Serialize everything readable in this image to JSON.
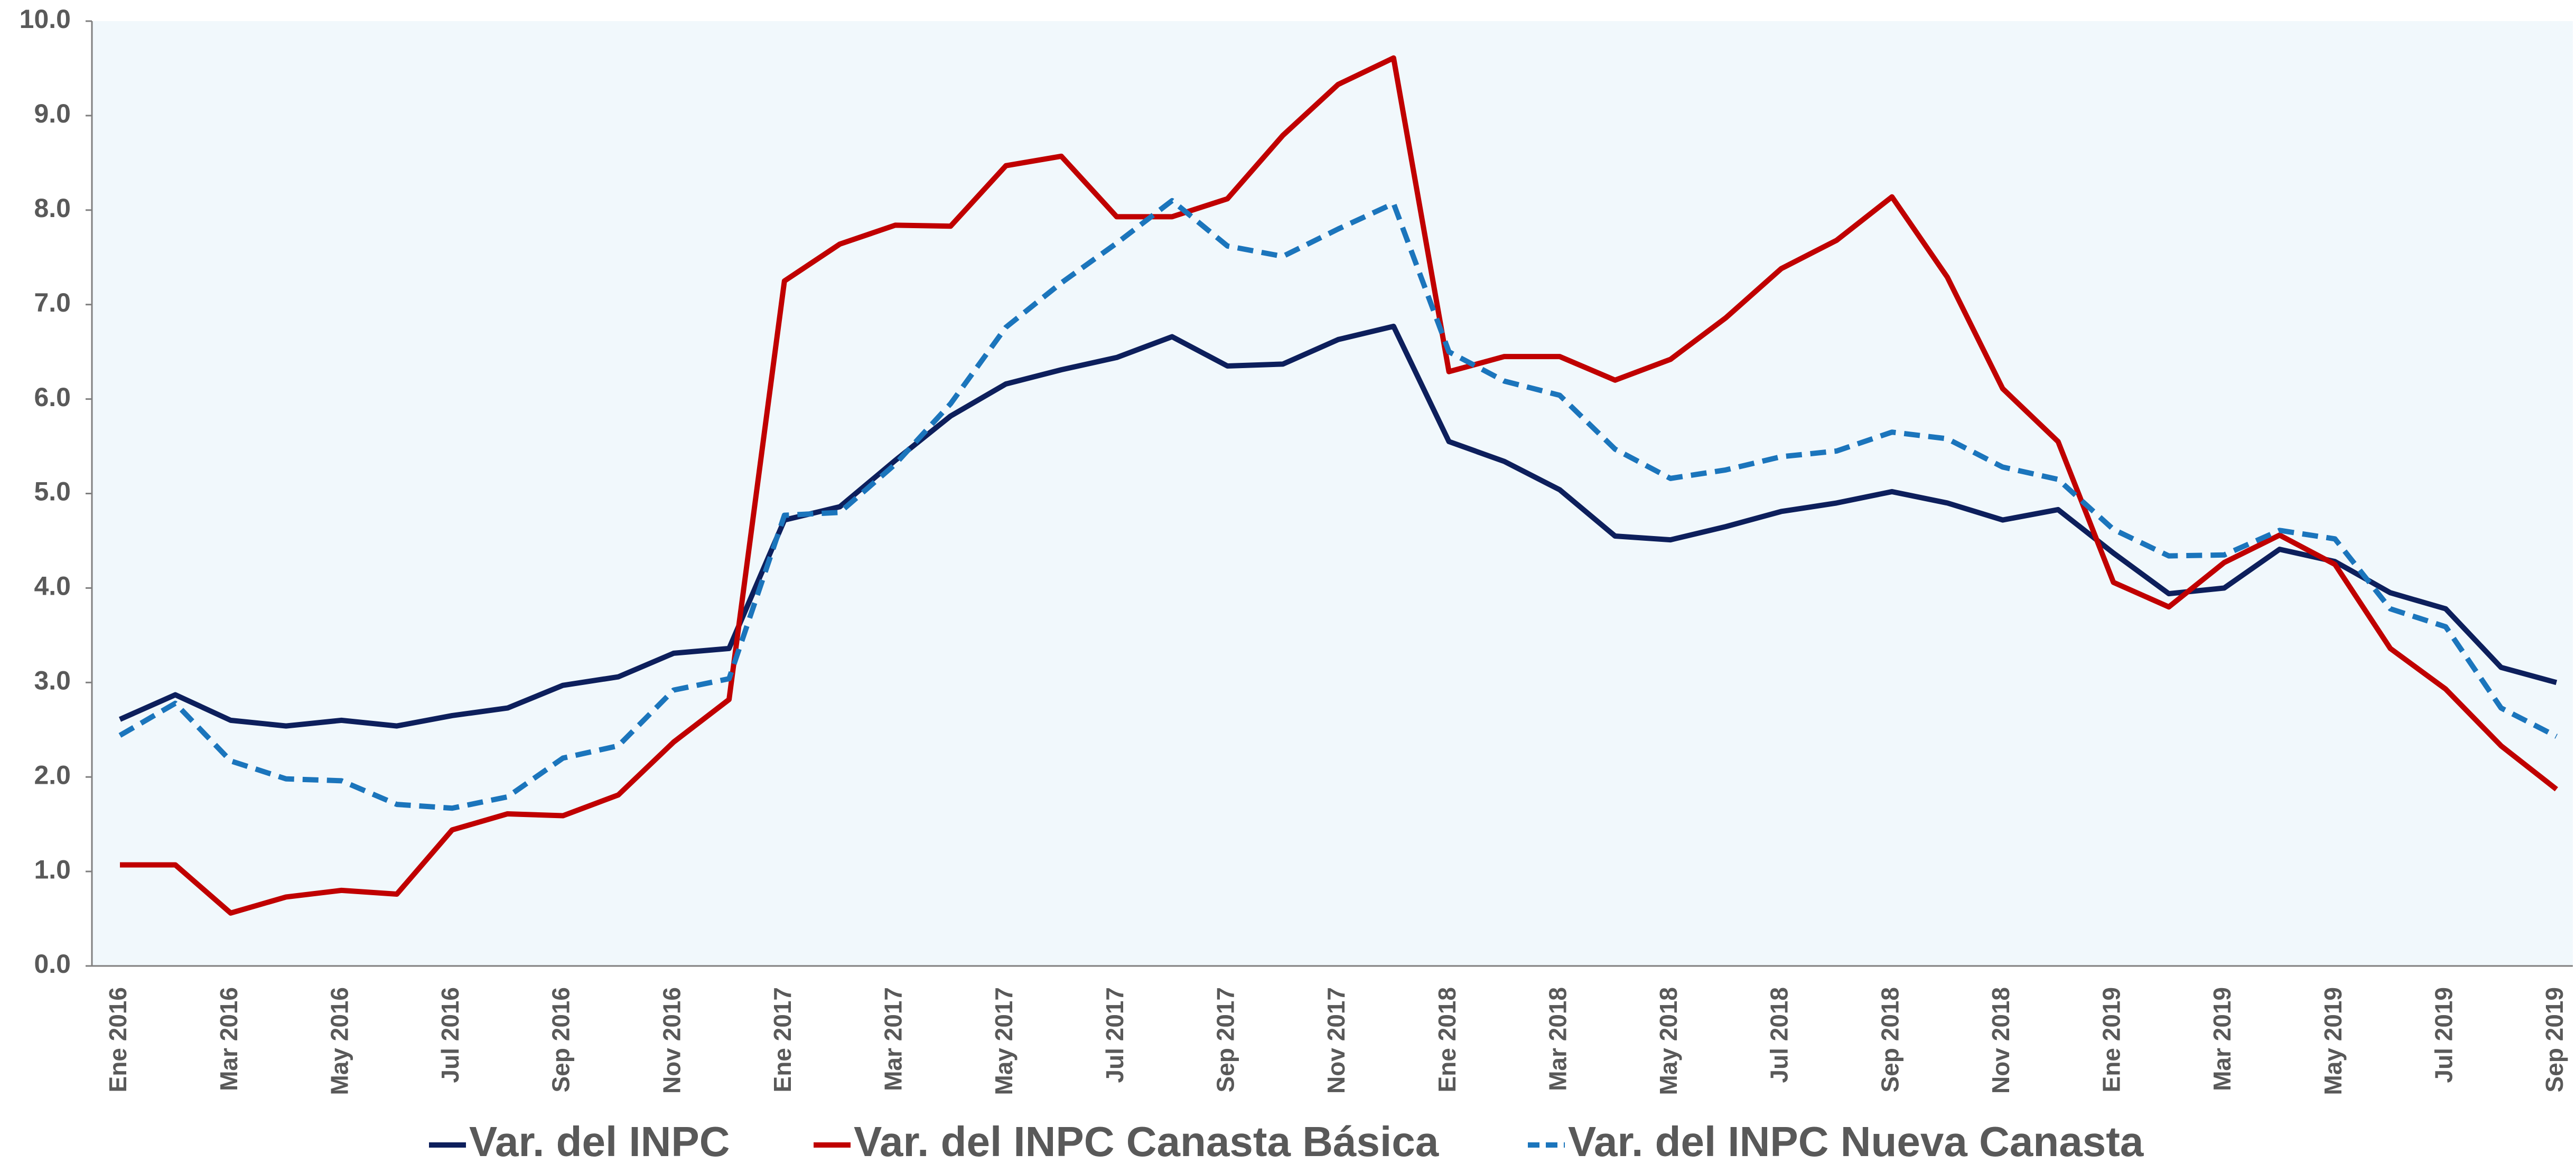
{
  "chart_data": {
    "type": "line",
    "categories": [
      "Ene 2016",
      null,
      "Mar 2016",
      null,
      "May 2016",
      null,
      "Jul 2016",
      null,
      "Sep 2016",
      null,
      "Nov 2016",
      null,
      "Ene 2017",
      null,
      "Mar 2017",
      null,
      "May 2017",
      null,
      "Jul 2017",
      null,
      "Sep 2017",
      null,
      "Nov 2017",
      null,
      "Ene 2018",
      null,
      "Mar 2018",
      null,
      "May 2018",
      null,
      "Jul 2018",
      null,
      "Sep 2018",
      null,
      "Nov 2018",
      null,
      "Ene 2019",
      null,
      "Mar 2019",
      null,
      "May 2019",
      null,
      "Jul 2019",
      null,
      "Sep 2019"
    ],
    "series": [
      {
        "name": "Var. del INPC",
        "color": "#0d1f5c",
        "dash": false,
        "values": [
          2.61,
          2.87,
          2.6,
          2.54,
          2.6,
          2.54,
          2.65,
          2.73,
          2.97,
          3.06,
          3.31,
          3.36,
          4.72,
          4.86,
          5.35,
          5.82,
          6.16,
          6.31,
          6.44,
          6.66,
          6.35,
          6.37,
          6.63,
          6.77,
          5.55,
          5.34,
          5.04,
          4.55,
          4.51,
          4.65,
          4.81,
          4.9,
          5.02,
          4.9,
          4.72,
          4.83,
          4.37,
          3.94,
          4.0,
          4.41,
          4.28,
          3.95,
          3.78,
          3.16,
          3.0
        ]
      },
      {
        "name": "Var. del INPC Canasta Básica",
        "color": "#c00000",
        "dash": false,
        "values": [
          1.07,
          1.07,
          0.56,
          0.73,
          0.8,
          0.76,
          1.44,
          1.61,
          1.59,
          1.81,
          2.37,
          2.82,
          7.25,
          7.64,
          7.84,
          7.83,
          8.47,
          8.57,
          7.93,
          7.93,
          8.12,
          8.79,
          9.33,
          9.61,
          6.29,
          6.45,
          6.45,
          6.2,
          6.42,
          6.86,
          7.38,
          7.68,
          8.14,
          7.29,
          6.11,
          5.55,
          4.06,
          3.8,
          4.27,
          4.56,
          4.25,
          3.36,
          2.93,
          2.33,
          1.87
        ]
      },
      {
        "name": "Var. del INPC Nueva Canasta",
        "color": "#1b75bc",
        "dash": true,
        "values": [
          2.44,
          2.78,
          2.17,
          1.98,
          1.96,
          1.71,
          1.67,
          1.79,
          2.2,
          2.33,
          2.92,
          3.04,
          4.77,
          4.8,
          5.31,
          5.95,
          6.76,
          7.23,
          7.65,
          8.1,
          7.62,
          7.51,
          7.8,
          8.07,
          6.5,
          6.19,
          6.04,
          5.47,
          5.16,
          5.25,
          5.39,
          5.45,
          5.65,
          5.58,
          5.28,
          5.15,
          4.62,
          4.34,
          4.35,
          4.61,
          4.52,
          3.78,
          3.59,
          2.73,
          2.43
        ]
      }
    ],
    "ylim": [
      0,
      10
    ],
    "yticks": [
      {
        "value": 0,
        "label": "0.0"
      },
      {
        "value": 1,
        "label": "1.0"
      },
      {
        "value": 2,
        "label": "2.0"
      },
      {
        "value": 3,
        "label": "3.0"
      },
      {
        "value": 4,
        "label": "4.0"
      },
      {
        "value": 5,
        "label": "5.0"
      },
      {
        "value": 6,
        "label": "6.0"
      },
      {
        "value": 7,
        "label": "7.0"
      },
      {
        "value": 8,
        "label": "8.0"
      },
      {
        "value": 9,
        "label": "9.0"
      },
      {
        "value": 10,
        "label": "10.0"
      }
    ],
    "grid": false,
    "legend": "bottom"
  }
}
